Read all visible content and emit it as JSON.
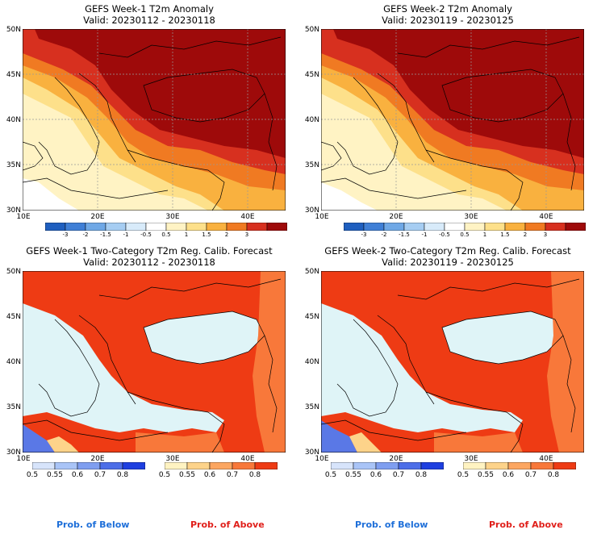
{
  "panels": [
    {
      "title": "GEFS Week-1 T2m Anomaly",
      "valid": "Valid: 20230112 - 20230118"
    },
    {
      "title": "GEFS Week-2 T2m Anomaly",
      "valid": "Valid: 20230119 - 20230125"
    },
    {
      "title": "GEFS Week-1 Two-Category T2m Reg. Calib. Forecast",
      "valid": "Valid: 20230112 - 20230118"
    },
    {
      "title": "GEFS Week-2 Two-Category T2m Reg. Calib. Forecast",
      "valid": "Valid: 20230119 - 20230125"
    }
  ],
  "lat_labels": [
    "50N",
    "45N",
    "40N",
    "35N",
    "30N"
  ],
  "lon_labels": [
    "10E",
    "20E",
    "30E",
    "40E"
  ],
  "anomaly_colorbar": {
    "labels": [
      "-3",
      "-2",
      "-1.5",
      "-1",
      "-0.5",
      "0.5",
      "1",
      "1.5",
      "2",
      "3"
    ],
    "colors": [
      "#1f5fbf",
      "#3f7fd6",
      "#6fa8e6",
      "#a6cdf2",
      "#d8ebfa",
      "#ffffff",
      "#fff3c4",
      "#fde08a",
      "#f9b13f",
      "#f07a22",
      "#d7301f",
      "#9e0a0a"
    ]
  },
  "below_colorbar": {
    "labels": [
      "0.5",
      "0.55",
      "0.6",
      "0.7",
      "0.8"
    ],
    "colors": [
      "#d7e4fb",
      "#a9c4f7",
      "#7f9ef0",
      "#4d6ee8",
      "#1e3fe0"
    ]
  },
  "above_colorbar": {
    "labels": [
      "0.5",
      "0.55",
      "0.6",
      "0.7",
      "0.8"
    ],
    "colors": [
      "#fff3c2",
      "#fdd38a",
      "#fca661",
      "#f8783a",
      "#ee3b14"
    ]
  },
  "prob_below": "Prob. of Below",
  "prob_above": "Prob. of Above",
  "colors": {
    "sea_light": "#dff4f7",
    "deep_red": "#9e0a0a",
    "red": "#d7301f",
    "orange_red": "#ee3b14"
  }
}
